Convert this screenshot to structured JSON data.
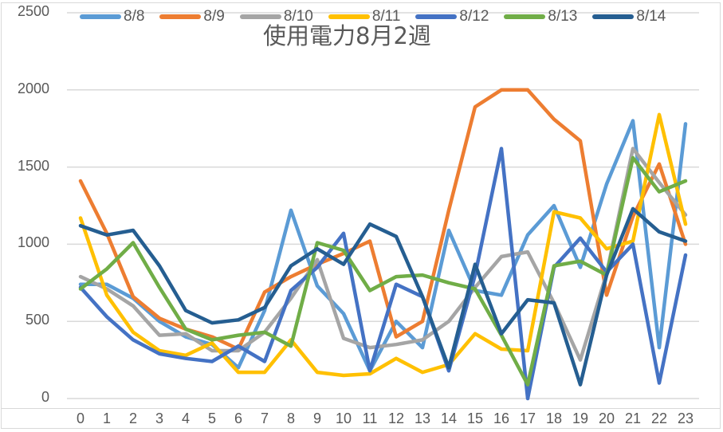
{
  "chart_data": {
    "type": "line",
    "title": "使用電力8月2週",
    "xlabel": "",
    "ylabel": "",
    "ylim": [
      0,
      2500
    ],
    "yticks": [
      0,
      500,
      1000,
      1500,
      2000,
      2500
    ],
    "grid": true,
    "legend_position": "top",
    "x": [
      0,
      1,
      2,
      3,
      4,
      5,
      6,
      7,
      8,
      9,
      10,
      11,
      12,
      13,
      14,
      15,
      16,
      17,
      18,
      19,
      20,
      21,
      22,
      23
    ],
    "series": [
      {
        "name": "8/8",
        "color": "#5B9BD5",
        "values": [
          740,
          740,
          650,
          500,
          400,
          350,
          200,
          570,
          1220,
          730,
          550,
          180,
          500,
          330,
          1090,
          700,
          670,
          1060,
          1250,
          850,
          1390,
          1800,
          330,
          1780
        ]
      },
      {
        "name": "8/9",
        "color": "#ED7D31",
        "values": [
          1410,
          1070,
          660,
          520,
          450,
          400,
          320,
          690,
          790,
          870,
          940,
          1020,
          400,
          500,
          1220,
          1890,
          2000,
          2000,
          1810,
          1670,
          670,
          1180,
          1520,
          1000
        ]
      },
      {
        "name": "8/10",
        "color": "#A5A5A5",
        "values": [
          790,
          710,
          600,
          410,
          420,
          310,
          310,
          430,
          650,
          900,
          390,
          330,
          350,
          380,
          500,
          720,
          920,
          950,
          620,
          250,
          810,
          1620,
          1400,
          1190
        ]
      },
      {
        "name": "8/11",
        "color": "#FFC000",
        "values": [
          1170,
          670,
          430,
          310,
          280,
          360,
          170,
          170,
          380,
          170,
          150,
          160,
          260,
          170,
          220,
          420,
          320,
          310,
          1210,
          1170,
          970,
          1020,
          1840,
          1130
        ]
      },
      {
        "name": "8/12",
        "color": "#4472C4",
        "values": [
          720,
          530,
          380,
          290,
          260,
          240,
          340,
          240,
          700,
          850,
          1070,
          180,
          740,
          660,
          180,
          800,
          1620,
          0,
          850,
          1040,
          820,
          1000,
          100,
          930
        ]
      },
      {
        "name": "8/13",
        "color": "#70AD47",
        "values": [
          710,
          840,
          1010,
          720,
          450,
          380,
          410,
          430,
          340,
          1010,
          960,
          700,
          790,
          800,
          750,
          710,
          410,
          90,
          860,
          890,
          800,
          1560,
          1340,
          1410
        ]
      },
      {
        "name": "8/14",
        "color": "#255E91",
        "values": [
          1120,
          1060,
          1090,
          860,
          570,
          490,
          510,
          590,
          860,
          970,
          870,
          1130,
          1050,
          660,
          200,
          870,
          420,
          640,
          620,
          90,
          800,
          1230,
          1080,
          1020
        ]
      }
    ]
  }
}
